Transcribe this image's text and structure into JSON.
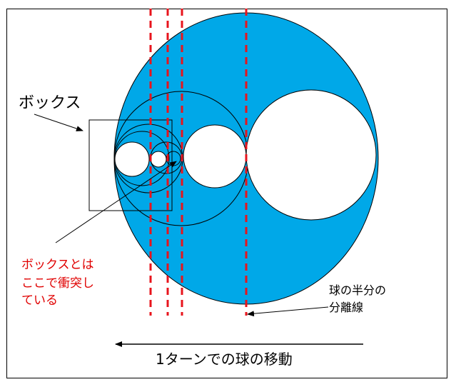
{
  "labels": {
    "box": "ボックス",
    "collision": [
      "ボックスとは",
      "ここで衝突し",
      "ている"
    ],
    "half_split": [
      "球の半分の",
      "分離線"
    ],
    "movement": "1ターンでの球の移動"
  },
  "colors": {
    "sphere_fill": "#00a8e8",
    "dashed_line": "#e8141c",
    "collision_text": "#e00000",
    "outline": "#000000",
    "background": "#ffffff"
  }
}
